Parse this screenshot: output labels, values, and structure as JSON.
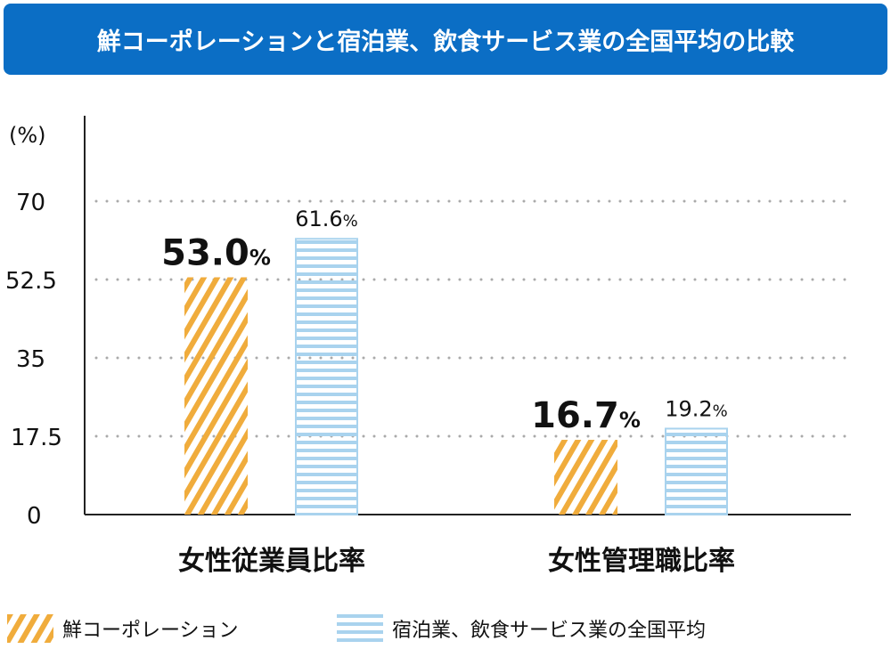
{
  "title": "鮮コーポレーションと宿泊業、飲食サービス業の全国平均の比較",
  "chart_data": {
    "type": "bar",
    "ylabel": "(%)",
    "ylim": [
      0,
      87.5
    ],
    "yticks": [
      0,
      17.5,
      35,
      52.5,
      70
    ],
    "yticklabels": [
      "0",
      "17.5",
      "35",
      "52.5",
      "70"
    ],
    "grid": true,
    "legend_placement": "bottom",
    "categories": [
      "女性従業員比率",
      "女性管理職比率"
    ],
    "series": [
      {
        "name": "鮮コーポレーション",
        "values": [
          53.0,
          16.7
        ],
        "labels": [
          "53.0",
          "16.7"
        ],
        "color": "#f0ac3c",
        "pattern": "diagonal-stripes"
      },
      {
        "name": "宿泊業、飲食サービス業の全国平均",
        "values": [
          61.6,
          19.2
        ],
        "labels": [
          "61.6",
          "19.2"
        ],
        "color": "#a9d3ee",
        "pattern": "horizontal-stripes"
      }
    ],
    "unit": "%"
  }
}
